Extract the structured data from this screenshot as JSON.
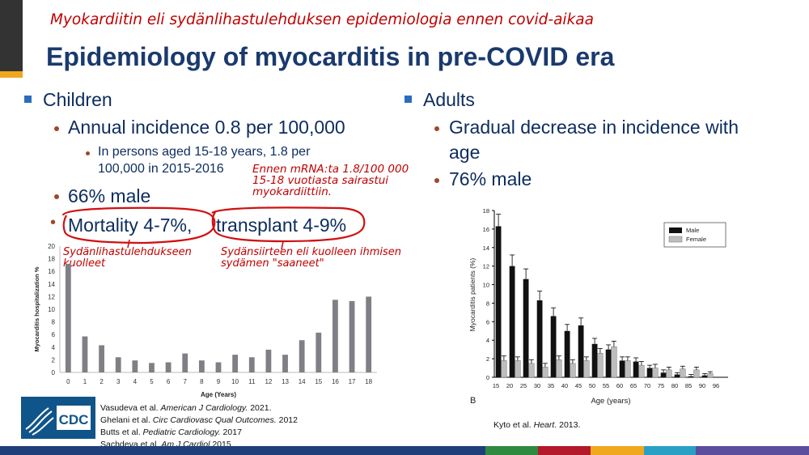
{
  "slide": {
    "subtitle_fi": "Myokardiitin eli sydänlihastulehduksen epidemiologia ennen covid-aikaa",
    "title": "Epidemiology of myocarditis in pre-COVID era"
  },
  "left": {
    "heading": "Children",
    "incidence": "Annual incidence 0.8 per 100,000",
    "sub_line1": "In persons aged 15-18 years, 1.8 per",
    "sub_line2": "100,000 in 2015-2016",
    "male": "66% male",
    "mortality_dot": "•",
    "mortality": "Mortality 4-7%,",
    "transplant": "transplant 4-9%"
  },
  "right": {
    "heading": "Adults",
    "decrease_line1": "Gradual decrease in incidence with",
    "decrease_line2": "age",
    "male": "76% male"
  },
  "annotations": {
    "mrna_line1": "Ennen mRNA:ta 1.8/100 000",
    "mrna_line2": "15-18 vuotiasta sairastui",
    "mrna_line3": "myokardiittiin.",
    "died_line1": "Sydänlihastulehdukseen",
    "died_line2": "kuolleet",
    "transplant_line1": "Sydänsiirteen eli kuolleen ihmisen",
    "transplant_line2": "sydämen \"saaneet\""
  },
  "references": {
    "left": [
      {
        "pre": "Vasudeva et al. ",
        "journal": "American J Cardiology.",
        "post": " 2021."
      },
      {
        "pre": "Ghelani et al. ",
        "journal": "Circ Cardiovasc Qual Outcomes.",
        "post": " 2012"
      },
      {
        "pre": "Butts et al. ",
        "journal": "Pediatric Cardiology.",
        "post": " 2017"
      },
      {
        "pre": "Sachdeva et al. ",
        "journal": "Am J Cardiol.",
        "post": "2015"
      }
    ],
    "right": {
      "pre": "Kyto et al. ",
      "journal": "Heart",
      "post": ". 2013."
    }
  },
  "logo": {
    "text": "CDC"
  },
  "colors": {
    "title": "#1a3a6e",
    "red_note": "#c00000",
    "bar_gray": "#7f7f86",
    "male_bar": "#111111",
    "female_bar": "#bdbdbd",
    "bullet_square": "#2a6ebb",
    "gold": "#f0a81e"
  },
  "chart_data": [
    {
      "type": "bar",
      "title": "",
      "xlabel": "Age (Years)",
      "ylabel": "Myocarditis hospitalization %",
      "ylim": [
        0,
        20
      ],
      "yticks": [
        0,
        2,
        4,
        6,
        8,
        10,
        12,
        14,
        16,
        18,
        20
      ],
      "grid": false,
      "categories": [
        "0",
        "1",
        "2",
        "3",
        "4",
        "5",
        "6",
        "7",
        "8",
        "9",
        "10",
        "11",
        "12",
        "13",
        "14",
        "15",
        "16",
        "17",
        "18"
      ],
      "values": [
        17.2,
        5.7,
        4.3,
        2.4,
        1.9,
        1.5,
        1.6,
        3.0,
        1.9,
        1.6,
        2.8,
        2.4,
        3.6,
        2.8,
        5.1,
        6.3,
        11.5,
        11.3,
        12.0
      ]
    },
    {
      "type": "bar",
      "title": "",
      "panel_label": "B",
      "xlabel": "Age (years)",
      "ylabel": "Myocarditis patients (%)",
      "ylim": [
        0,
        18
      ],
      "yticks": [
        0,
        2,
        4,
        6,
        8,
        10,
        12,
        14,
        16,
        18
      ],
      "grid": false,
      "legend_position": "top-right",
      "categories": [
        "15",
        "20",
        "25",
        "30",
        "35",
        "40",
        "45",
        "50",
        "55",
        "60",
        "65",
        "70",
        "75",
        "80",
        "85",
        "90",
        "96"
      ],
      "series": [
        {
          "name": "Male",
          "values": [
            16.3,
            12.0,
            10.6,
            8.3,
            6.6,
            5.0,
            5.6,
            3.6,
            3.0,
            1.8,
            1.7,
            1.0,
            0.5,
            0.3,
            0.1,
            0.2,
            0
          ]
        },
        {
          "name": "Female",
          "values": [
            1.8,
            1.8,
            1.5,
            1.1,
            1.9,
            1.5,
            1.8,
            2.6,
            3.3,
            1.8,
            1.3,
            1.0,
            0.8,
            0.9,
            0.8,
            0.4,
            0
          ]
        }
      ],
      "errors": {
        "Male": [
          1.3,
          1.2,
          1.1,
          1.0,
          0.9,
          0.7,
          0.8,
          0.6,
          0.5,
          0.4,
          0.4,
          0.3,
          0.3,
          0.2,
          0.2,
          0.2,
          0
        ],
        "Female": [
          0.5,
          0.4,
          0.4,
          0.4,
          0.4,
          0.4,
          0.4,
          0.5,
          0.6,
          0.4,
          0.4,
          0.4,
          0.3,
          0.3,
          0.3,
          0.2,
          0
        ]
      }
    }
  ]
}
